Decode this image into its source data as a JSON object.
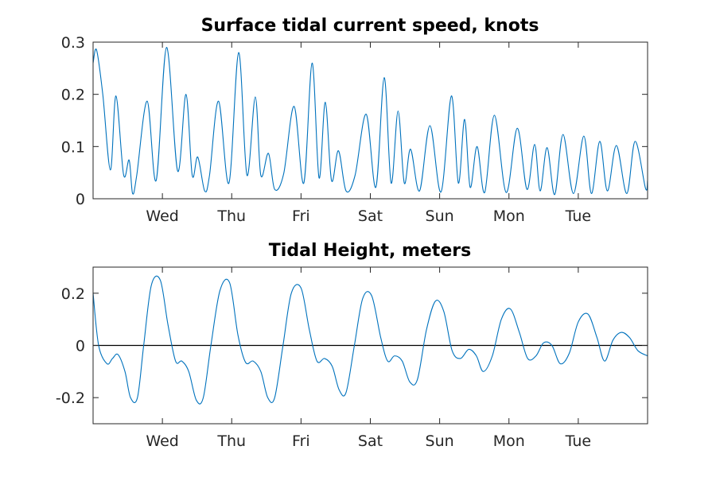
{
  "chart_data": [
    {
      "type": "line",
      "title": "Surface tidal current speed, knots",
      "xlabel": "",
      "ylabel": "",
      "xlim": [
        0,
        8
      ],
      "ylim": [
        0,
        0.3
      ],
      "x_tick_positions": [
        1,
        2,
        3,
        4,
        5,
        6,
        7
      ],
      "x_tick_labels": [
        "Wed",
        "Thu",
        "Fri",
        "Sat",
        "Sun",
        "Mon",
        "Tue"
      ],
      "y_ticks": [
        0,
        0.1,
        0.2,
        0.3
      ],
      "y_tick_labels": [
        "0",
        "0.1",
        "0.2",
        "0.3"
      ],
      "grid": false,
      "zero_line": false,
      "color": "#0072BD",
      "series": [
        {
          "x": [
            0,
            0.05,
            0.14,
            0.25,
            0.33,
            0.44,
            0.52,
            0.57,
            0.63,
            0.78,
            0.91,
            1.06,
            1.22,
            1.34,
            1.43,
            1.51,
            1.61,
            1.68,
            1.81,
            1.96,
            2.1,
            2.22,
            2.34,
            2.42,
            2.53,
            2.62,
            2.75,
            2.9,
            3.04,
            3.16,
            3.26,
            3.35,
            3.44,
            3.54,
            3.65,
            3.78,
            3.94,
            4.08,
            4.2,
            4.3,
            4.4,
            4.49,
            4.58,
            4.71,
            4.86,
            5.02,
            5.17,
            5.27,
            5.36,
            5.44,
            5.54,
            5.65,
            5.79,
            5.96,
            6.12,
            6.26,
            6.37,
            6.45,
            6.55,
            6.66,
            6.78,
            6.93,
            7.08,
            7.19,
            7.31,
            7.42,
            7.55,
            7.7,
            7.82,
            7.97,
            8.0
          ],
          "y": [
            0.26,
            0.285,
            0.2,
            0.055,
            0.197,
            0.046,
            0.074,
            0.01,
            0.045,
            0.187,
            0.035,
            0.29,
            0.053,
            0.2,
            0.045,
            0.08,
            0.015,
            0.045,
            0.187,
            0.03,
            0.28,
            0.045,
            0.195,
            0.045,
            0.087,
            0.018,
            0.048,
            0.177,
            0.03,
            0.26,
            0.04,
            0.185,
            0.035,
            0.092,
            0.015,
            0.045,
            0.162,
            0.022,
            0.232,
            0.03,
            0.168,
            0.03,
            0.095,
            0.015,
            0.14,
            0.013,
            0.197,
            0.03,
            0.152,
            0.022,
            0.1,
            0.012,
            0.16,
            0.012,
            0.135,
            0.018,
            0.104,
            0.015,
            0.098,
            0.008,
            0.123,
            0.01,
            0.12,
            0.01,
            0.11,
            0.015,
            0.102,
            0.01,
            0.11,
            0.02,
            0.035
          ]
        }
      ]
    },
    {
      "type": "line",
      "title": "Tidal Height, meters",
      "xlabel": "",
      "ylabel": "",
      "xlim": [
        0,
        8
      ],
      "ylim": [
        -0.3,
        0.3
      ],
      "x_tick_positions": [
        1,
        2,
        3,
        4,
        5,
        6,
        7
      ],
      "x_tick_labels": [
        "Wed",
        "Thu",
        "Fri",
        "Sat",
        "Sun",
        "Mon",
        "Tue"
      ],
      "y_ticks": [
        -0.2,
        0,
        0.2
      ],
      "y_tick_labels": [
        "-0.2",
        "0",
        "0.2"
      ],
      "grid": false,
      "zero_line": true,
      "color": "#0072BD",
      "series": [
        {
          "x": [
            0,
            0.08,
            0.2,
            0.28,
            0.36,
            0.46,
            0.54,
            0.64,
            0.73,
            0.84,
            0.97,
            1.08,
            1.19,
            1.28,
            1.38,
            1.49,
            1.59,
            1.7,
            1.83,
            1.97,
            2.09,
            2.2,
            2.31,
            2.42,
            2.52,
            2.62,
            2.74,
            2.86,
            3.0,
            3.12,
            3.23,
            3.34,
            3.45,
            3.55,
            3.65,
            3.77,
            3.89,
            4.02,
            4.15,
            4.25,
            4.35,
            4.46,
            4.57,
            4.68,
            4.81,
            4.94,
            5.06,
            5.18,
            5.3,
            5.42,
            5.53,
            5.63,
            5.76,
            5.89,
            6.02,
            6.15,
            6.27,
            6.39,
            6.5,
            6.62,
            6.74,
            6.87,
            7.0,
            7.14,
            7.27,
            7.38,
            7.5,
            7.62,
            7.74,
            7.86,
            8.0
          ],
          "y": [
            0.2,
            0.0,
            -0.07,
            -0.05,
            -0.035,
            -0.1,
            -0.2,
            -0.2,
            0.0,
            0.23,
            0.25,
            0.08,
            -0.06,
            -0.06,
            -0.1,
            -0.21,
            -0.2,
            0.0,
            0.21,
            0.24,
            0.04,
            -0.065,
            -0.06,
            -0.1,
            -0.2,
            -0.2,
            0.0,
            0.2,
            0.22,
            0.06,
            -0.06,
            -0.05,
            -0.08,
            -0.17,
            -0.18,
            0.0,
            0.18,
            0.19,
            0.03,
            -0.06,
            -0.04,
            -0.06,
            -0.14,
            -0.13,
            0.06,
            0.17,
            0.13,
            -0.02,
            -0.05,
            -0.015,
            -0.04,
            -0.1,
            -0.04,
            0.1,
            0.14,
            0.05,
            -0.05,
            -0.04,
            0.01,
            0.0,
            -0.07,
            -0.03,
            0.09,
            0.12,
            0.03,
            -0.06,
            0.02,
            0.05,
            0.03,
            -0.02,
            -0.04
          ]
        }
      ]
    }
  ]
}
